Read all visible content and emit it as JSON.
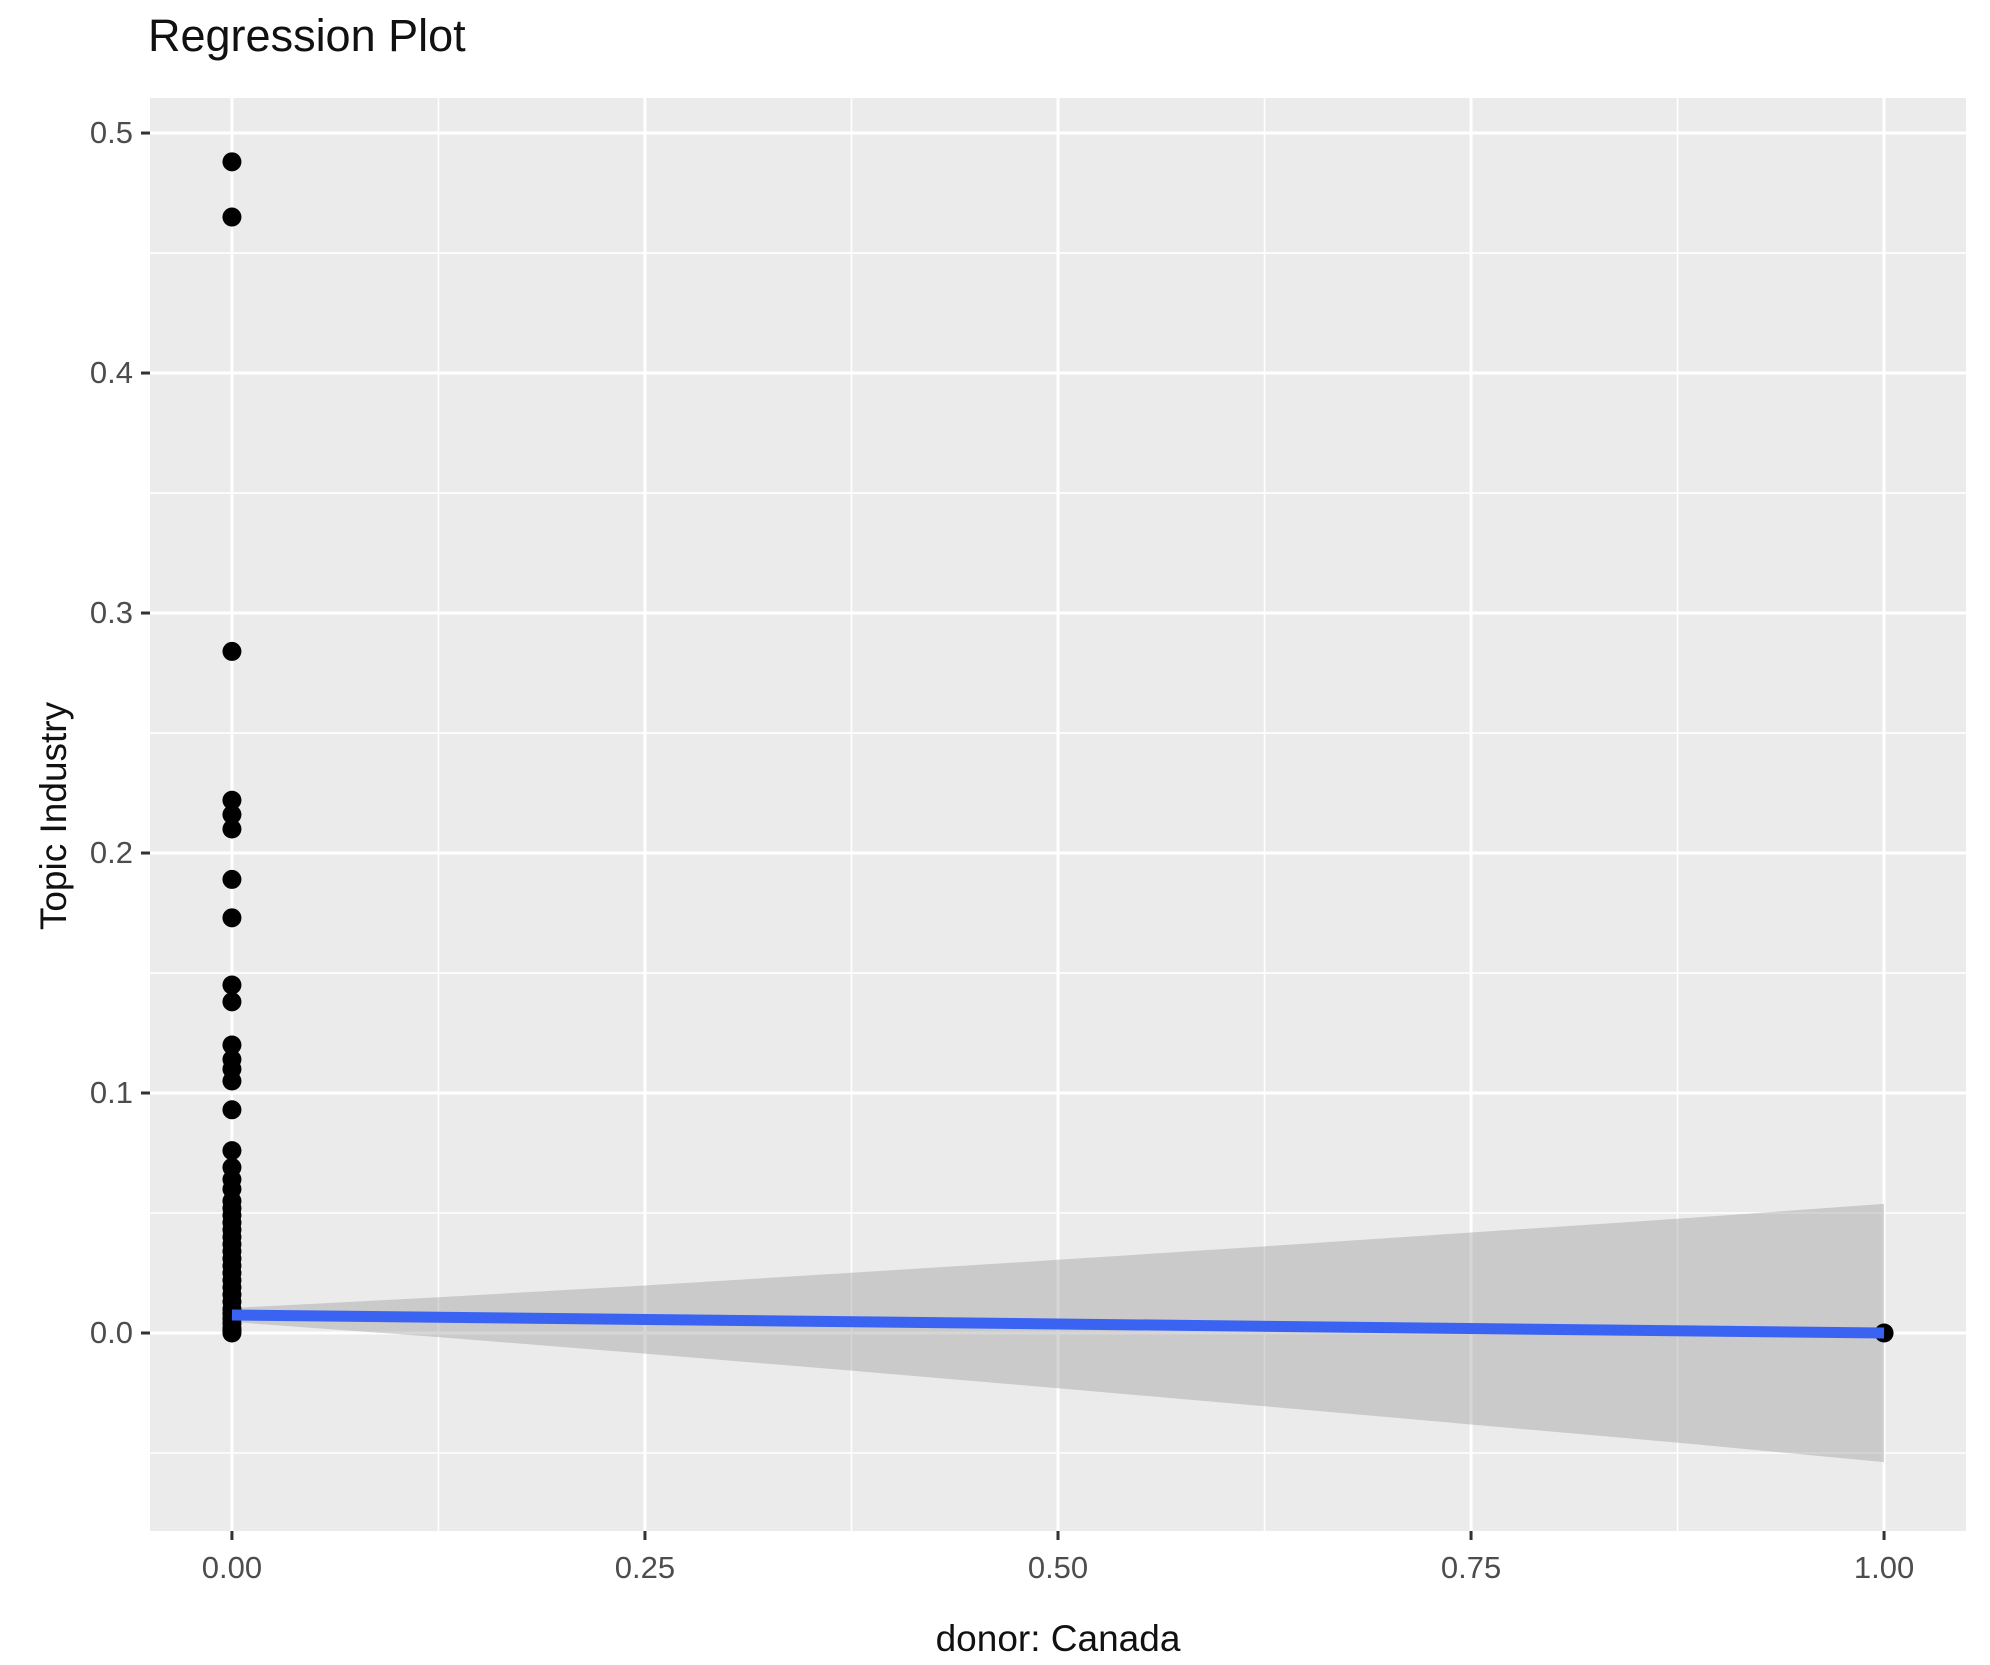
{
  "title": "Regression Plot",
  "chart_data": {
    "type": "scatter",
    "title": "Regression Plot",
    "xlabel": "donor: Canada",
    "ylabel": "Topic Industry",
    "xlim": [
      -0.0496,
      1.0496
    ],
    "ylim": [
      -0.0825,
      0.5146
    ],
    "grid": true,
    "legend_position": "none",
    "panel_bg_color": "#EBEBEB",
    "grid_color": "#FFFFFF",
    "tick_mark_color": "#333333",
    "tick_label_color": "#4D4D4D",
    "point_color": "#000000",
    "line_color": "#3A63F2",
    "band_color": "#999999",
    "band_alpha": 0.4,
    "x_ticks": {
      "values": [
        0,
        0.25,
        0.5,
        0.75,
        1.0
      ],
      "labels": [
        "0.00",
        "0.25",
        "0.50",
        "0.75",
        "1.00"
      ]
    },
    "y_ticks": {
      "values": [
        0,
        0.1,
        0.2,
        0.3,
        0.4,
        0.5
      ],
      "labels": [
        "0.0",
        "0.1",
        "0.2",
        "0.3",
        "0.4",
        "0.5"
      ]
    },
    "x_minor_ticks": [
      0.125,
      0.375,
      0.625,
      0.875
    ],
    "y_minor_ticks": [
      -0.05,
      0.05,
      0.15,
      0.25,
      0.35,
      0.45
    ],
    "series": [
      {
        "name": "observations",
        "type": "points",
        "points": [
          [
            0,
            0.488
          ],
          [
            0,
            0.465
          ],
          [
            0,
            0.284
          ],
          [
            0,
            0.222
          ],
          [
            0,
            0.216
          ],
          [
            0,
            0.21
          ],
          [
            0,
            0.189
          ],
          [
            0,
            0.173
          ],
          [
            0,
            0.145
          ],
          [
            0,
            0.138
          ],
          [
            0,
            0.12
          ],
          [
            0,
            0.114
          ],
          [
            0,
            0.11
          ],
          [
            0,
            0.105
          ],
          [
            0,
            0.093
          ],
          [
            0,
            0.076
          ],
          [
            0,
            0.069
          ],
          [
            0,
            0.064
          ],
          [
            0,
            0.06
          ],
          [
            0,
            0.055
          ],
          [
            0,
            0.052
          ],
          [
            0,
            0.049
          ],
          [
            0,
            0.046
          ],
          [
            0,
            0.043
          ],
          [
            0,
            0.04
          ],
          [
            0,
            0.037
          ],
          [
            0,
            0.034
          ],
          [
            0,
            0.031
          ],
          [
            0,
            0.028
          ],
          [
            0,
            0.025
          ],
          [
            0,
            0.022
          ],
          [
            0,
            0.019
          ],
          [
            0,
            0.016
          ],
          [
            0,
            0.013
          ],
          [
            0,
            0.01
          ],
          [
            0,
            0.008
          ],
          [
            0,
            0.006
          ],
          [
            0,
            0.004
          ],
          [
            0,
            0.002
          ],
          [
            0,
            0.001
          ],
          [
            0,
            0.0
          ],
          [
            1,
            0.0
          ]
        ]
      },
      {
        "name": "regression-fit",
        "type": "line",
        "x": [
          0,
          1
        ],
        "y": [
          0.0075,
          0.0
        ]
      },
      {
        "name": "confidence-band",
        "type": "band",
        "x": [
          0,
          0.125,
          0.25,
          0.375,
          0.5,
          0.625,
          0.75,
          0.875,
          1.0
        ],
        "upper": [
          0.0104,
          0.0149,
          0.0198,
          0.0251,
          0.0305,
          0.0361,
          0.0419,
          0.0476,
          0.0538
        ],
        "lower": [
          0.0046,
          -0.0017,
          -0.0086,
          -0.0157,
          -0.023,
          -0.0305,
          -0.0381,
          -0.0457,
          -0.0538
        ]
      }
    ]
  }
}
